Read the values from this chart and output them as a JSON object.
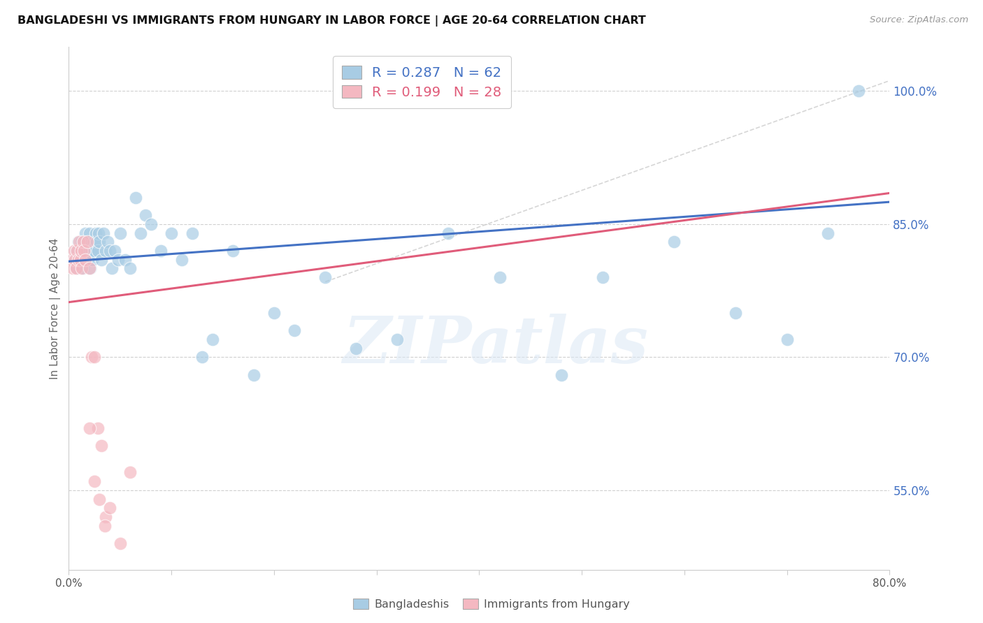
{
  "title": "BANGLADESHI VS IMMIGRANTS FROM HUNGARY IN LABOR FORCE | AGE 20-64 CORRELATION CHART",
  "source": "Source: ZipAtlas.com",
  "ylabel_label": "In Labor Force | Age 20-64",
  "x_ticks": [
    0.0,
    0.1,
    0.2,
    0.3,
    0.4,
    0.5,
    0.6,
    0.7,
    0.8
  ],
  "x_tick_labels": [
    "0.0%",
    "",
    "",
    "",
    "",
    "",
    "",
    "",
    "80.0%"
  ],
  "y_ticks": [
    0.55,
    0.7,
    0.85,
    1.0
  ],
  "y_tick_labels": [
    "55.0%",
    "70.0%",
    "85.0%",
    "100.0%"
  ],
  "xlim": [
    0.0,
    0.8
  ],
  "ylim": [
    0.46,
    1.05
  ],
  "blue_color": "#a8cce4",
  "pink_color": "#f4b8c1",
  "trend_blue_color": "#4472c4",
  "trend_pink_color": "#e05c7a",
  "ref_line_color": "#cccccc",
  "blue_scatter_x": [
    0.005,
    0.007,
    0.008,
    0.009,
    0.01,
    0.011,
    0.012,
    0.013,
    0.014,
    0.015,
    0.016,
    0.017,
    0.018,
    0.019,
    0.02,
    0.021,
    0.022,
    0.023,
    0.024,
    0.025,
    0.026,
    0.027,
    0.028,
    0.029,
    0.03,
    0.032,
    0.034,
    0.036,
    0.038,
    0.04,
    0.042,
    0.045,
    0.048,
    0.05,
    0.055,
    0.06,
    0.065,
    0.07,
    0.075,
    0.08,
    0.09,
    0.1,
    0.11,
    0.12,
    0.13,
    0.14,
    0.16,
    0.18,
    0.2,
    0.22,
    0.25,
    0.28,
    0.32,
    0.37,
    0.42,
    0.48,
    0.52,
    0.59,
    0.65,
    0.7,
    0.74,
    0.77
  ],
  "blue_scatter_y": [
    0.81,
    0.82,
    0.8,
    0.83,
    0.82,
    0.81,
    0.83,
    0.82,
    0.8,
    0.83,
    0.84,
    0.82,
    0.83,
    0.81,
    0.84,
    0.8,
    0.82,
    0.81,
    0.83,
    0.82,
    0.84,
    0.83,
    0.82,
    0.84,
    0.83,
    0.81,
    0.84,
    0.82,
    0.83,
    0.82,
    0.8,
    0.82,
    0.81,
    0.84,
    0.81,
    0.8,
    0.88,
    0.84,
    0.86,
    0.85,
    0.82,
    0.84,
    0.81,
    0.84,
    0.7,
    0.72,
    0.82,
    0.68,
    0.75,
    0.73,
    0.79,
    0.71,
    0.72,
    0.84,
    0.79,
    0.68,
    0.79,
    0.83,
    0.75,
    0.72,
    0.84,
    1.0
  ],
  "pink_scatter_x": [
    0.003,
    0.004,
    0.005,
    0.006,
    0.007,
    0.008,
    0.009,
    0.01,
    0.011,
    0.012,
    0.013,
    0.014,
    0.015,
    0.016,
    0.018,
    0.02,
    0.022,
    0.025,
    0.028,
    0.032,
    0.036,
    0.04,
    0.05,
    0.06,
    0.02,
    0.025,
    0.03,
    0.035
  ],
  "pink_scatter_y": [
    0.81,
    0.8,
    0.82,
    0.81,
    0.8,
    0.82,
    0.81,
    0.83,
    0.81,
    0.82,
    0.8,
    0.83,
    0.82,
    0.81,
    0.83,
    0.8,
    0.7,
    0.7,
    0.62,
    0.6,
    0.52,
    0.53,
    0.49,
    0.57,
    0.62,
    0.56,
    0.54,
    0.51
  ],
  "watermark_text": "ZIPatlas",
  "legend_label_blue": "Bangladeshis",
  "legend_label_pink": "Immigrants from Hungary",
  "legend_r_blue": "R = 0.287",
  "legend_n_blue": "N = 62",
  "legend_r_pink": "R = 0.199",
  "legend_n_pink": "N = 28"
}
